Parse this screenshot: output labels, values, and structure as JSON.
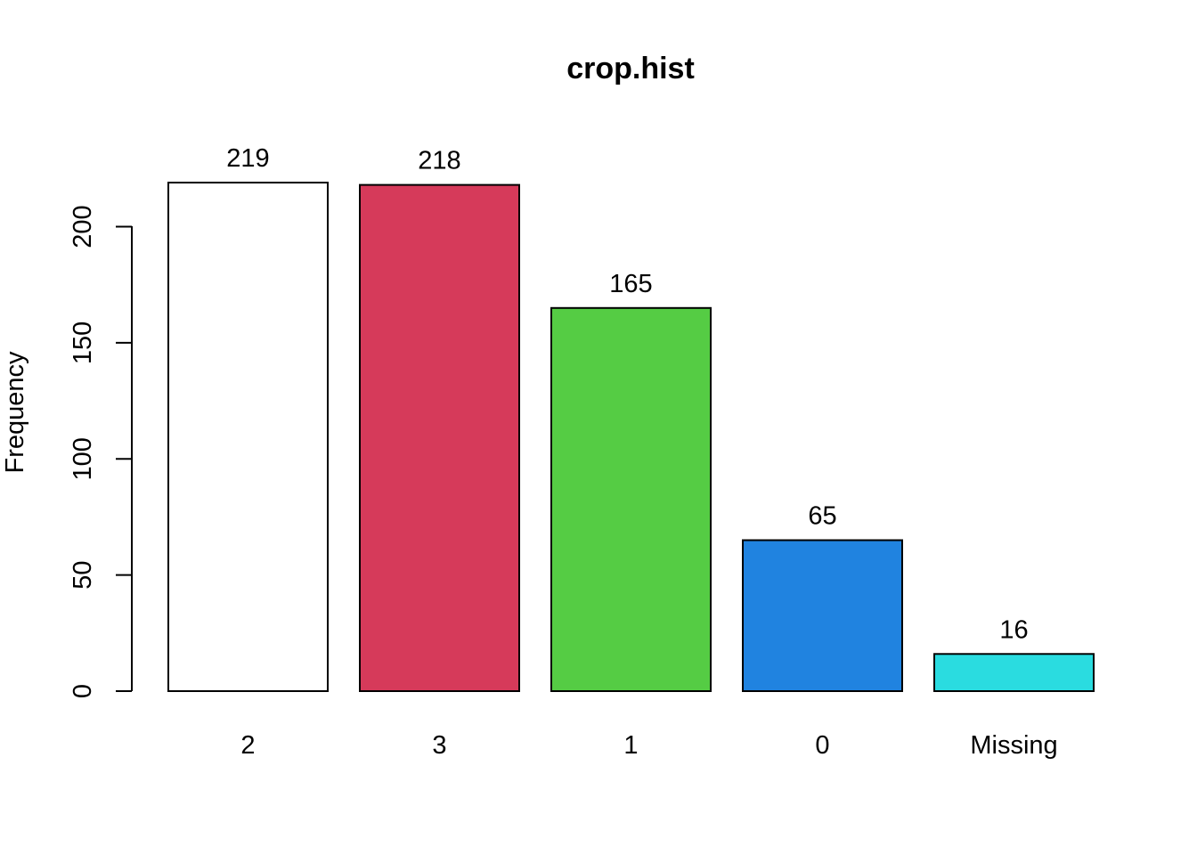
{
  "chart_data": {
    "type": "bar",
    "title": "crop.hist",
    "xlabel": "",
    "ylabel": "Frequency",
    "categories": [
      "2",
      "3",
      "1",
      "0",
      "Missing"
    ],
    "values": [
      219,
      218,
      165,
      65,
      16
    ],
    "data_labels": [
      "219",
      "218",
      "165",
      "65",
      "16"
    ],
    "colors": [
      "#FFFFFF",
      "#D63A5A",
      "#55CC44",
      "#2083E0",
      "#2ADCE0"
    ],
    "ylim": [
      0,
      219
    ],
    "y_ticks": [
      0,
      50,
      100,
      150,
      200
    ],
    "y_tick_labels": [
      "0",
      "50",
      "100",
      "150",
      "200"
    ],
    "grid": false,
    "legend": "none"
  }
}
